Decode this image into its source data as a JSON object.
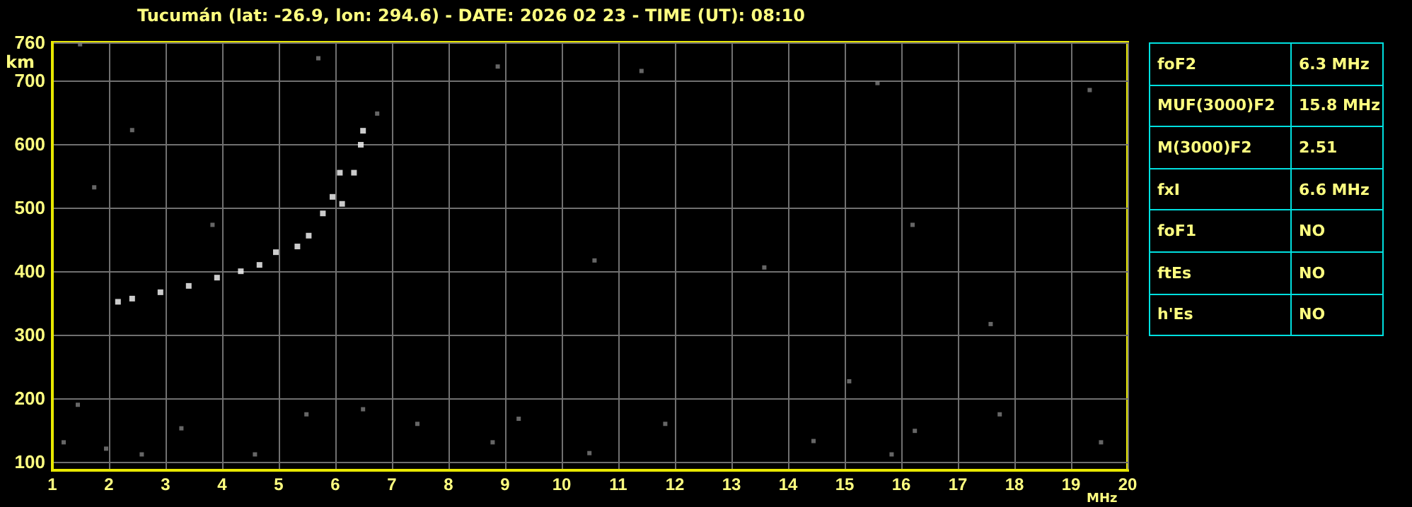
{
  "chart_data": [
    {
      "type": "scatter",
      "title": "Tucumán (lat: -26.9, lon: 294.6) - DATE: 2026 02 23 - TIME (UT): 08:10",
      "xlabel": "MHz",
      "ylabel": "km",
      "xlim": [
        1,
        20
      ],
      "ylim": [
        87,
        760
      ],
      "xticks": [
        1,
        2,
        3,
        4,
        5,
        6,
        7,
        8,
        9,
        10,
        11,
        12,
        13,
        14,
        15,
        16,
        17,
        18,
        19,
        20
      ],
      "yticks": [
        100,
        200,
        300,
        400,
        500,
        600,
        700,
        760
      ],
      "grid": true,
      "marker": "square",
      "series": [
        {
          "color": "#808080",
          "x": [
            1.45,
            3.28,
            1.95,
            1.2,
            2.58,
            4.58,
            5.49,
            6.49,
            7.45,
            8.78,
            9.24,
            10.49,
            15.83,
            19.53,
            16.24,
            17.74,
            14.45,
            5.7,
            1.49,
            8.87,
            11.41,
            6.74,
            2.41,
            3.83,
            1.74,
            10.58,
            15.58,
            19.33,
            13.58,
            16.2,
            17.58,
            15.08,
            11.83
          ],
          "values": [
            190,
            153,
            121,
            131,
            112,
            112,
            175,
            183,
            160,
            131,
            168,
            114,
            112,
            131,
            149,
            175,
            133,
            735,
            757,
            722,
            715,
            648,
            622,
            473,
            532,
            417,
            696,
            685,
            406,
            473,
            317,
            227,
            160
          ]
        },
        {
          "color": "#ffffff",
          "x": [
            2.16,
            2.41,
            2.91,
            3.41,
            3.91,
            4.33,
            4.66,
            4.95,
            5.33,
            5.53,
            5.78,
            5.95,
            6.08,
            6.12,
            6.33,
            6.45,
            6.49
          ],
          "values": [
            352,
            357,
            367,
            377,
            390,
            400,
            410,
            430,
            439,
            456,
            491,
            517,
            555,
            506,
            555,
            599,
            621
          ]
        }
      ]
    },
    {
      "type": "other",
      "annotations": [
        "foF2",
        "6.3 MHz",
        "MUF(3000)F2",
        "15.8 MHz",
        "M(3000)F2",
        "2.51",
        "fxI",
        "6.6 MHz",
        "foF1",
        "NO",
        "ftEs",
        "NO",
        "h'Es",
        "NO"
      ]
    }
  ]
}
